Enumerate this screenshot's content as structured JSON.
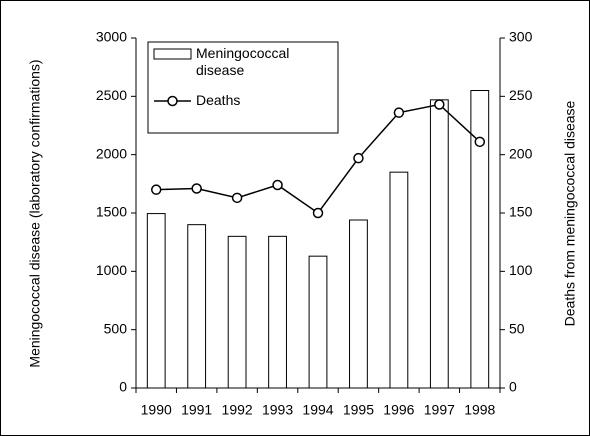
{
  "chart_data": {
    "type": "bar",
    "categories": [
      "1990",
      "1991",
      "1992",
      "1993",
      "1994",
      "1995",
      "1996",
      "1997",
      "1998"
    ],
    "series": [
      {
        "name": "Meningococcal disease",
        "type": "bar",
        "color": "#ffffff",
        "values": [
          1495,
          1400,
          1300,
          1300,
          1130,
          1440,
          1850,
          2470,
          2550
        ]
      },
      {
        "name": "Deaths",
        "type": "line",
        "axis": "y2",
        "color": "#000000",
        "values": [
          170,
          171,
          163,
          174,
          150,
          197,
          236,
          243,
          211
        ]
      }
    ],
    "y_label": "Meningococcal disease (laboratory confirmations)",
    "y2_label": "Deaths from meningococcal disease",
    "ylim": [
      0,
      3000
    ],
    "yticks": [
      0,
      500,
      1000,
      1500,
      2000,
      2500,
      3000
    ],
    "y2lim": [
      0,
      300
    ],
    "y2ticks": [
      0,
      50,
      100,
      150,
      200,
      250,
      300
    ],
    "grid": false,
    "legend": "upper left"
  }
}
